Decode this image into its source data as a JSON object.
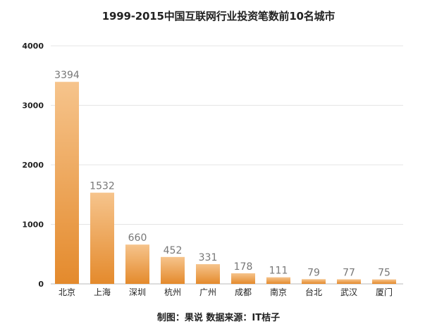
{
  "chart_data": {
    "type": "bar",
    "title": "1999-2015中国互联网行业投资笔数前10名城市",
    "xlabel": "",
    "ylabel": "",
    "categories": [
      "北京",
      "上海",
      "深圳",
      "杭州",
      "广州",
      "成都",
      "南京",
      "台北",
      "武汉",
      "厦门"
    ],
    "values": [
      3394,
      1532,
      660,
      452,
      331,
      178,
      111,
      79,
      77,
      75
    ],
    "data_labels": [
      "3394",
      "1532",
      "660",
      "452",
      "331",
      "178",
      "111",
      "79",
      "77",
      "75"
    ],
    "y_ticks": [
      "0",
      "1000",
      "2000",
      "3000",
      "4000"
    ],
    "ylim": [
      0,
      4000
    ],
    "grid": true,
    "legend": "none",
    "bar_color_top": "#f6c48c",
    "bar_color_bottom": "#e48a2c"
  },
  "credit": "制图：果说  数据来源：IT桔子"
}
